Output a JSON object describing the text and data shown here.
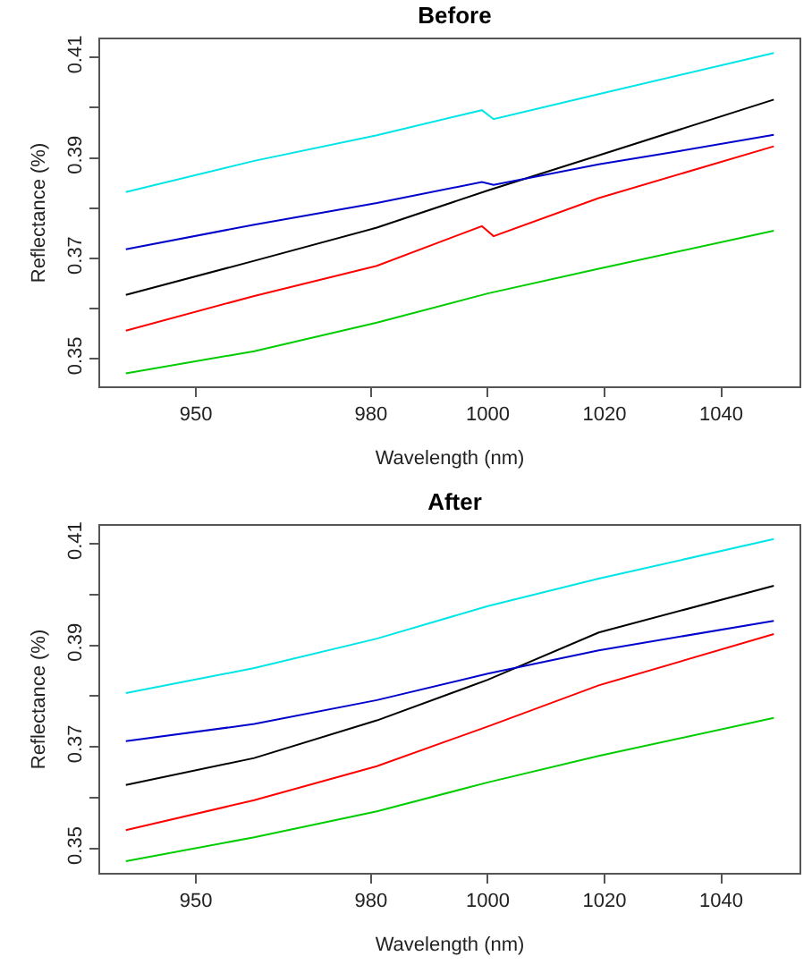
{
  "chart_data": [
    {
      "type": "line",
      "title": "Before",
      "xlabel": "Wavelength (nm)",
      "ylabel": "Reflectance (%)",
      "xlim": [
        933.6,
        1053.4
      ],
      "ylim": [
        0.3445,
        0.4136
      ],
      "xticks": [
        950,
        980,
        1000,
        1020,
        1040
      ],
      "yticks": [
        0.35,
        {
          "value": 0.36,
          "label": null
        },
        0.37,
        {
          "value": 0.38,
          "label": null
        },
        0.39,
        {
          "value": 0.4,
          "label": null
        },
        0.41
      ],
      "grid": false,
      "line_style": "solid",
      "marker": "none",
      "series": [
        {
          "color": "#00e5e5",
          "x": [
            938,
            960,
            981,
            999,
            1001,
            1019,
            1049
          ],
          "values": [
            0.3832,
            0.3894,
            0.3945,
            0.3995,
            0.3977,
            0.4027,
            0.4109
          ]
        },
        {
          "color": "#000000",
          "x": [
            938,
            960,
            981,
            1000,
            1019,
            1049
          ],
          "values": [
            0.3627,
            0.3695,
            0.3761,
            0.3835,
            0.3905,
            0.4016
          ]
        },
        {
          "color": "#0000cc",
          "x": [
            938,
            960,
            981,
            999,
            1001,
            1019,
            1033,
            1049
          ],
          "values": [
            0.3718,
            0.3767,
            0.381,
            0.3852,
            0.3846,
            0.3887,
            0.3914,
            0.3946
          ]
        },
        {
          "color": "#ff0000",
          "x": [
            938,
            960,
            981,
            999,
            1001,
            1019,
            1049
          ],
          "values": [
            0.3556,
            0.3625,
            0.3685,
            0.3764,
            0.3744,
            0.382,
            0.3923
          ]
        },
        {
          "color": "#00cd00",
          "x": [
            938,
            960,
            981,
            1000,
            1019,
            1049
          ],
          "values": [
            0.3471,
            0.3515,
            0.3572,
            0.363,
            0.3679,
            0.3755
          ]
        }
      ]
    },
    {
      "type": "line",
      "title": "After",
      "xlabel": "Wavelength (nm)",
      "ylabel": "Reflectance (%)",
      "xlim": [
        933.6,
        1053.4
      ],
      "ylim": [
        0.3452,
        0.4135
      ],
      "xticks": [
        950,
        980,
        1000,
        1020,
        1040
      ],
      "yticks": [
        0.35,
        {
          "value": 0.36,
          "label": null
        },
        0.37,
        {
          "value": 0.38,
          "label": null
        },
        0.39,
        {
          "value": 0.4,
          "label": null
        },
        0.41
      ],
      "grid": false,
      "line_style": "solid",
      "marker": "none",
      "series": [
        {
          "color": "#00e5e5",
          "x": [
            938,
            960,
            981,
            1000,
            1019,
            1049
          ],
          "values": [
            0.3806,
            0.3855,
            0.3913,
            0.3977,
            0.4031,
            0.4109
          ]
        },
        {
          "color": "#000000",
          "x": [
            938,
            960,
            981,
            1000,
            1019,
            1049
          ],
          "values": [
            0.3625,
            0.3678,
            0.3752,
            0.3832,
            0.3925,
            0.4017
          ]
        },
        {
          "color": "#0000cc",
          "x": [
            938,
            960,
            981,
            1000,
            1019,
            1049
          ],
          "values": [
            0.3711,
            0.3745,
            0.3792,
            0.3844,
            0.389,
            0.3948
          ]
        },
        {
          "color": "#ff0000",
          "x": [
            938,
            960,
            981,
            1000,
            1019,
            1049
          ],
          "values": [
            0.3536,
            0.3595,
            0.3662,
            0.374,
            0.3821,
            0.3922
          ]
        },
        {
          "color": "#00cd00",
          "x": [
            938,
            960,
            981,
            1000,
            1019,
            1049
          ],
          "values": [
            0.3475,
            0.3522,
            0.3573,
            0.363,
            0.3682,
            0.3757
          ]
        }
      ]
    }
  ]
}
